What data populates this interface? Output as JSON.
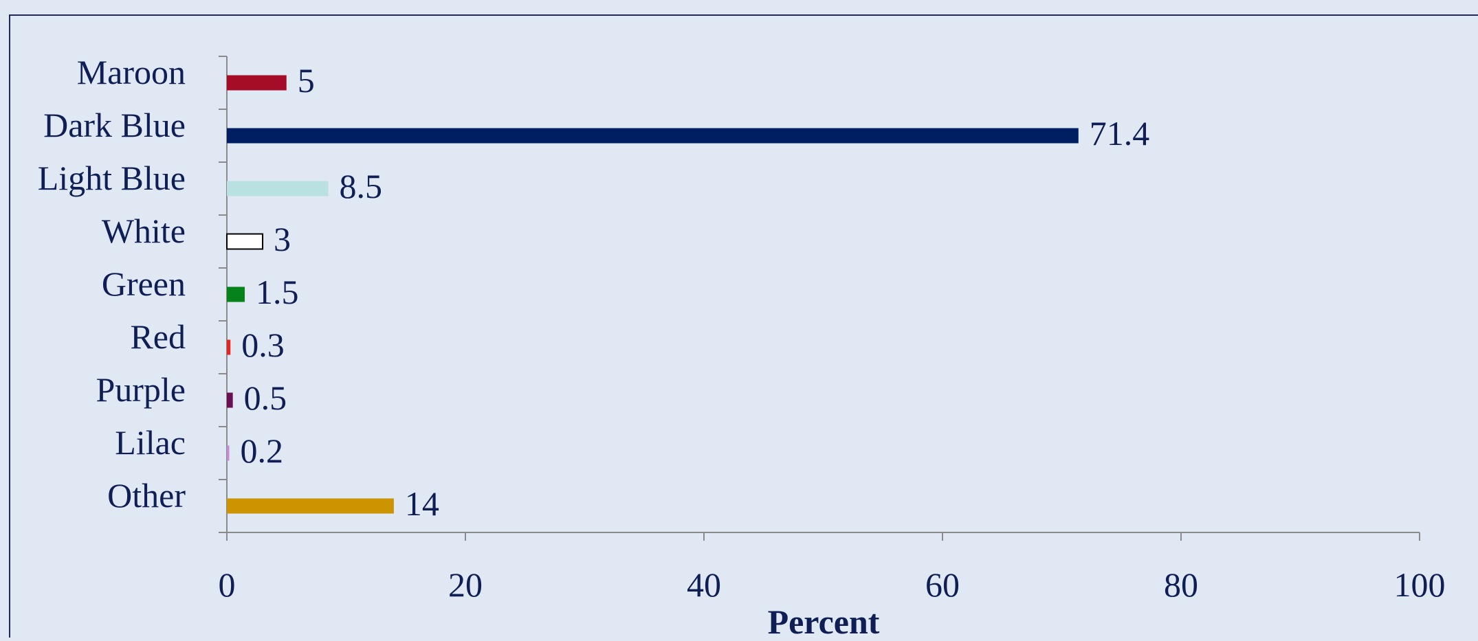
{
  "chart_data": {
    "type": "bar",
    "orientation": "horizontal",
    "categories": [
      "Maroon",
      "Dark Blue",
      "Light Blue",
      "White",
      "Green",
      "Red",
      "Purple",
      "Lilac",
      "Other"
    ],
    "values": [
      5,
      71.4,
      8.5,
      3,
      1.5,
      0.3,
      0.5,
      0.2,
      14
    ],
    "value_labels": [
      "5",
      "71.4",
      "8.5",
      "3",
      "1.5",
      "0.3",
      "0.5",
      "0.2",
      "14"
    ],
    "bar_colors": [
      "#a50d27",
      "#001e62",
      "#b9e1e2",
      "#ffffff",
      "#05831a",
      "#e8251d",
      "#6d0f55",
      "#c889d4",
      "#cc9400"
    ],
    "xlabel": "Percent",
    "ylabel": "",
    "title": "",
    "xlim": [
      0,
      100
    ],
    "xticks": [
      0,
      20,
      40,
      60,
      80,
      100
    ],
    "xtick_labels": [
      "0",
      "20",
      "40",
      "60",
      "80",
      "100"
    ],
    "grid": false,
    "legend": "none",
    "colors": {
      "background": "#dfe8f3",
      "text": "#0f1f56",
      "axis": "#8a8a8a",
      "frame": "#1a2a5e"
    }
  }
}
